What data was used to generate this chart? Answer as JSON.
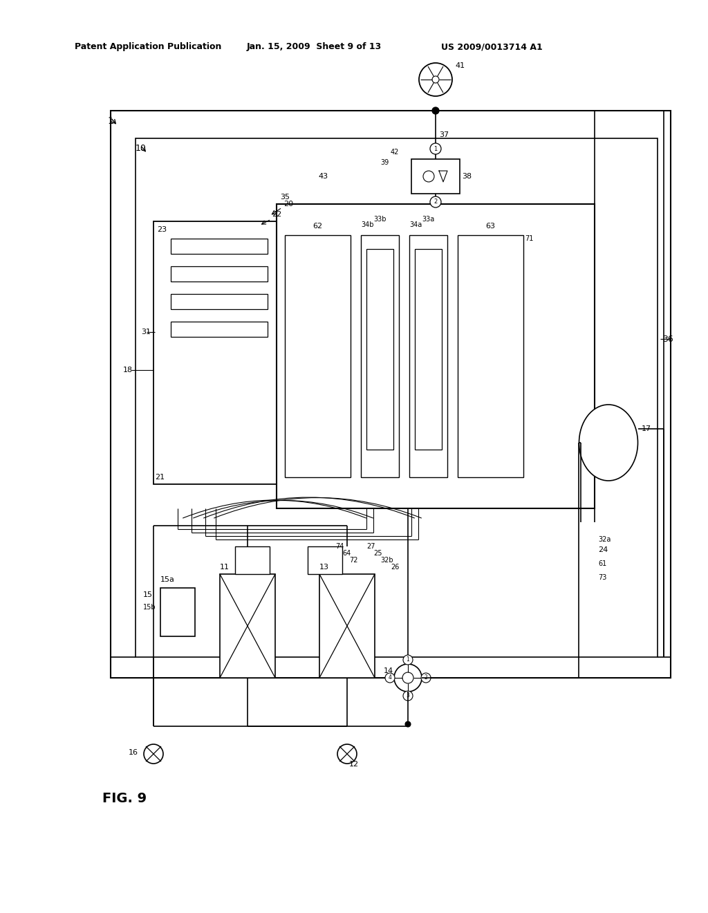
{
  "bg_color": "#ffffff",
  "header_left": "Patent Application Publication",
  "header_center": "Jan. 15, 2009  Sheet 9 of 13",
  "header_right": "US 2009/0013714 A1",
  "fig_label": "FIG. 9"
}
